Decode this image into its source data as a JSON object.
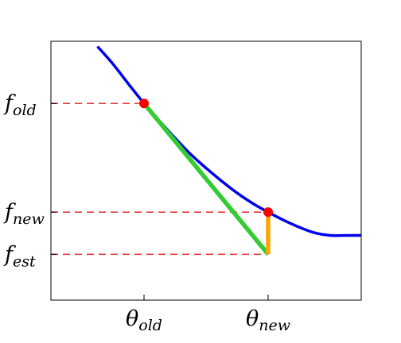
{
  "chart_data": {
    "type": "line",
    "title": "",
    "xlabel": "",
    "ylabel": "",
    "xlim": [
      0,
      1
    ],
    "ylim": [
      0,
      1
    ],
    "grid": false,
    "legend": "none",
    "xticks": [
      {
        "value": 0.3,
        "base": "θ",
        "sub": "old"
      },
      {
        "value": 0.7,
        "base": "θ",
        "sub": "new"
      }
    ],
    "yticks": [
      {
        "value": 0.76,
        "base": "f",
        "sub": "old"
      },
      {
        "value": 0.34,
        "base": "f",
        "sub": "new"
      },
      {
        "value": 0.177,
        "base": "f",
        "sub": "est"
      }
    ],
    "curve": {
      "color": "#0000ee",
      "x": [
        0.15,
        0.2,
        0.25,
        0.3,
        0.35,
        0.4,
        0.45,
        0.5,
        0.55,
        0.6,
        0.65,
        0.7,
        0.75,
        0.8,
        0.85,
        0.9,
        0.95,
        1.0
      ],
      "y": [
        0.98,
        0.912,
        0.835,
        0.76,
        0.692,
        0.626,
        0.564,
        0.51,
        0.46,
        0.414,
        0.374,
        0.34,
        0.309,
        0.282,
        0.26,
        0.25,
        0.25,
        0.25
      ]
    },
    "points": {
      "color": "#ff0000",
      "items": [
        {
          "x": 0.3,
          "y": 0.76
        },
        {
          "x": 0.7,
          "y": 0.34
        }
      ]
    },
    "tangent": {
      "color": "#33cc33",
      "x": [
        0.3,
        0.7
      ],
      "y": [
        0.76,
        0.177
      ]
    },
    "gap": {
      "color": "#ffa500",
      "x": [
        0.7,
        0.7
      ],
      "y": [
        0.177,
        0.34
      ]
    },
    "reference_lines": {
      "color": "#e04040",
      "style": "dashed"
    }
  }
}
